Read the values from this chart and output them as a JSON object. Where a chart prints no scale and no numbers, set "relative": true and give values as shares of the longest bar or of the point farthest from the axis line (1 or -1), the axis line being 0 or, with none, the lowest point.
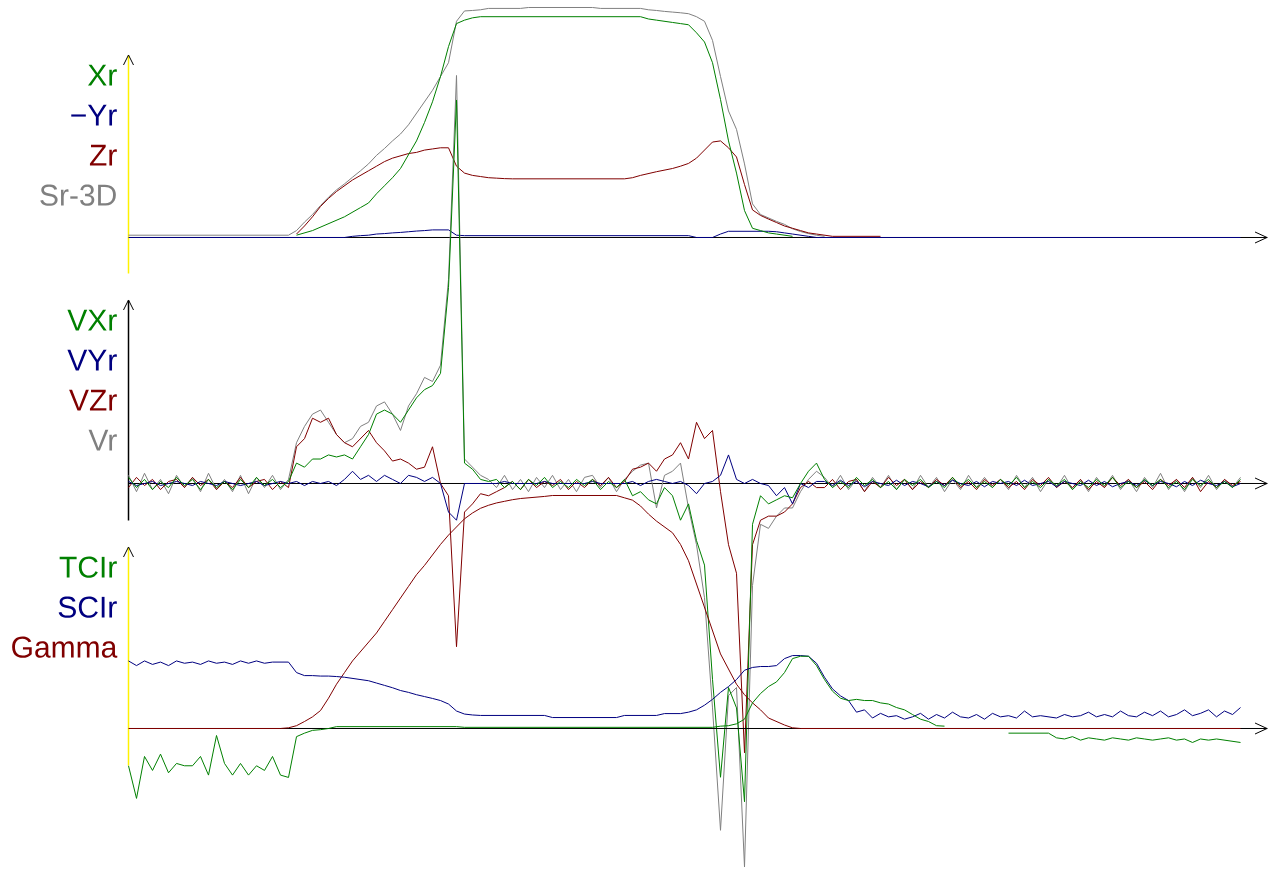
{
  "chart_data": [
    {
      "type": "line",
      "relative": true,
      "legend": "left",
      "categories": [
        null,
        null,
        null,
        null,
        null,
        null,
        null,
        null,
        null,
        null,
        null,
        null,
        null,
        null,
        null,
        null,
        null,
        null,
        null,
        null,
        null,
        null,
        null,
        null,
        null,
        null,
        null,
        null,
        null,
        null,
        null,
        null,
        null,
        null,
        null,
        null,
        null,
        null,
        null,
        null,
        null,
        null,
        null,
        null,
        null,
        null,
        null,
        null,
        null,
        null,
        null,
        null,
        null,
        null,
        null,
        null,
        null,
        null,
        null,
        null,
        null,
        null,
        null,
        null,
        null,
        null,
        null,
        null,
        null,
        null,
        null,
        null,
        null,
        null,
        null,
        null,
        null,
        null,
        null,
        null,
        null,
        null,
        null,
        null,
        null,
        null,
        null,
        null,
        null,
        null,
        null,
        null,
        null,
        null,
        null,
        null,
        null,
        null,
        null,
        null,
        null,
        null,
        null,
        null,
        null,
        null,
        null,
        null,
        null,
        null,
        null,
        null,
        null,
        null,
        null,
        null,
        null,
        null,
        null,
        null,
        null,
        null,
        null,
        null,
        null,
        null,
        null,
        null,
        null,
        null,
        null,
        null,
        null,
        null,
        null,
        null,
        null,
        null,
        null,
        null
      ],
      "series": [
        {
          "name": "Xr",
          "color": "#008000",
          "values": [
            null,
            null,
            null,
            null,
            null,
            null,
            null,
            null,
            null,
            null,
            null,
            null,
            null,
            null,
            null,
            null,
            null,
            null,
            null,
            null,
            null,
            0.01,
            0.02,
            0.03,
            0.045,
            0.06,
            0.075,
            0.09,
            0.11,
            0.13,
            0.15,
            0.19,
            0.225,
            0.26,
            0.3,
            0.36,
            0.42,
            0.5,
            0.59,
            0.7,
            0.83,
            0.93,
            0.945,
            0.955,
            0.96,
            0.96,
            0.96,
            0.96,
            0.96,
            0.96,
            0.96,
            0.96,
            0.96,
            0.96,
            0.96,
            0.96,
            0.96,
            0.96,
            0.96,
            0.96,
            0.96,
            0.96,
            0.96,
            0.96,
            0.96,
            0.95,
            0.945,
            0.94,
            0.935,
            0.93,
            0.925,
            0.89,
            0.85,
            0.76,
            0.6,
            0.42,
            0.28,
            0.117,
            0.04,
            0.03,
            0.02,
            0.015,
            0.01,
            0.005,
            null,
            null,
            null,
            null,
            null,
            null,
            null,
            null,
            null,
            null,
            null,
            null,
            null,
            null,
            null,
            null,
            null,
            null,
            null,
            null,
            null,
            null,
            null,
            null,
            null,
            null,
            null,
            null,
            null,
            null,
            null,
            null,
            null,
            null,
            null,
            null,
            null,
            null,
            null,
            null,
            null,
            null,
            null,
            null,
            null,
            null,
            null,
            null,
            null,
            null,
            null,
            null,
            null,
            null,
            null,
            null
          ]
        },
        {
          "name": "−Yr",
          "color": "#000080",
          "values": [
            0,
            0,
            0,
            0,
            0,
            0,
            0,
            0,
            0,
            0,
            0,
            0,
            0,
            0,
            0,
            0,
            0,
            0,
            0,
            0,
            0,
            0,
            0,
            0,
            0,
            0,
            0,
            0,
            0.005,
            0.008,
            0.01,
            0.015,
            0.017,
            0.02,
            0.022,
            0.025,
            0.028,
            0.03,
            0.033,
            0.033,
            0.033,
            0.01,
            0.008,
            0.008,
            0.008,
            0.008,
            0.008,
            0.008,
            0.008,
            0.008,
            0.008,
            0.008,
            0.008,
            0.008,
            0.008,
            0.008,
            0.008,
            0.008,
            0.008,
            0.008,
            0.008,
            0.008,
            0.008,
            0.008,
            0.008,
            0.008,
            0.008,
            0.008,
            0.008,
            0.008,
            0.008,
            0,
            0,
            0,
            0.015,
            0.027,
            0.027,
            0.027,
            0.027,
            0.027,
            0.027,
            0.025,
            0.02,
            0.015,
            0.01,
            0.005,
            0,
            0,
            0,
            0,
            0,
            0,
            0,
            0,
            0,
            0,
            0,
            0,
            0,
            0,
            0,
            0,
            0,
            0,
            0,
            0,
            0,
            0,
            0,
            0,
            0,
            0,
            0,
            0,
            0,
            0,
            0,
            0,
            0,
            0,
            0,
            0,
            0,
            0,
            0,
            0,
            0,
            0,
            0,
            0,
            0,
            0,
            0,
            0,
            0,
            0,
            0,
            0,
            0,
            0
          ]
        },
        {
          "name": "Zr",
          "color": "#800000",
          "values": [
            null,
            null,
            null,
            null,
            null,
            null,
            null,
            null,
            null,
            null,
            null,
            null,
            null,
            null,
            null,
            null,
            null,
            null,
            null,
            null,
            null,
            0.015,
            0.05,
            0.09,
            0.135,
            0.17,
            0.2,
            0.225,
            0.25,
            0.27,
            0.29,
            0.31,
            0.33,
            0.345,
            0.355,
            0.365,
            0.37,
            0.38,
            0.385,
            0.39,
            0.39,
            0.31,
            0.28,
            0.27,
            0.265,
            0.26,
            0.258,
            0.256,
            0.255,
            0.255,
            0.255,
            0.255,
            0.255,
            0.255,
            0.255,
            0.255,
            0.255,
            0.255,
            0.255,
            0.255,
            0.255,
            0.255,
            0.255,
            0.26,
            0.27,
            0.278,
            0.286,
            0.293,
            0.3,
            0.31,
            0.322,
            0.345,
            0.38,
            0.415,
            0.42,
            0.39,
            0.35,
            0.23,
            0.12,
            0.096,
            0.08,
            0.065,
            0.05,
            0.04,
            0.03,
            0.02,
            0.015,
            0.01,
            0.005,
            0.005,
            0.005,
            0.005,
            0.005,
            0.005,
            0.005,
            null,
            null,
            null,
            null,
            null,
            null,
            null,
            null,
            null,
            null,
            null,
            null,
            null,
            null,
            null,
            null,
            null,
            null,
            null,
            null,
            null,
            null,
            null,
            null,
            null,
            null,
            null,
            null,
            null,
            null,
            null,
            null,
            null,
            null,
            null,
            null,
            null,
            null,
            null,
            null,
            null,
            null,
            null,
            null,
            null
          ]
        },
        {
          "name": "Sr-3D",
          "color": "#808080",
          "values": [
            0.01,
            0.01,
            0.01,
            0.01,
            0.01,
            0.01,
            0.01,
            0.01,
            0.01,
            0.01,
            0.01,
            0.01,
            0.01,
            0.01,
            0.01,
            0.01,
            0.01,
            0.01,
            0.01,
            0.01,
            0.01,
            0.03,
            0.067,
            0.1,
            0.139,
            0.175,
            0.207,
            0.233,
            0.262,
            0.29,
            0.32,
            0.357,
            0.387,
            0.42,
            0.45,
            0.49,
            0.54,
            0.59,
            0.64,
            0.7,
            0.76,
            0.94,
            0.985,
            0.987,
            0.99,
            0.996,
            0.996,
            0.996,
            0.996,
            0.996,
            1,
            1,
            1,
            1,
            1,
            1,
            1,
            1,
            1,
            0.996,
            0.996,
            0.996,
            0.996,
            0.996,
            0.996,
            0.99,
            0.987,
            0.983,
            0.98,
            0.977,
            0.973,
            0.96,
            0.94,
            0.857,
            0.7,
            0.55,
            0.47,
            0.32,
            0.146,
            0.1,
            0.085,
            0.07,
            0.057,
            0.038,
            0.026,
            0.017,
            0.01,
            0.005,
            null,
            null,
            null,
            null,
            null,
            null,
            null,
            null,
            null,
            null,
            null,
            null,
            null,
            null,
            null,
            null,
            null,
            null,
            null,
            null,
            null,
            null,
            null,
            null,
            null,
            null,
            null,
            null,
            null,
            null,
            null,
            null,
            null,
            null,
            null,
            null,
            null,
            null,
            null,
            null,
            null,
            null,
            null,
            null,
            null,
            null,
            null,
            null,
            null,
            null,
            null,
            null
          ]
        }
      ]
    },
    {
      "type": "line",
      "relative": true,
      "legend": "left",
      "categories": [
        null,
        null,
        null,
        null,
        null,
        null,
        null,
        null,
        null,
        null,
        null,
        null,
        null,
        null,
        null,
        null,
        null,
        null,
        null,
        null,
        null,
        null,
        null,
        null,
        null,
        null,
        null,
        null,
        null,
        null,
        null,
        null,
        null,
        null,
        null,
        null,
        null,
        null,
        null,
        null,
        null,
        null,
        null,
        null,
        null,
        null,
        null,
        null,
        null,
        null,
        null,
        null,
        null,
        null,
        null,
        null,
        null,
        null,
        null,
        null,
        null,
        null,
        null,
        null,
        null,
        null,
        null,
        null,
        null,
        null,
        null,
        null,
        null,
        null,
        null,
        null,
        null,
        null,
        null,
        null,
        null,
        null,
        null,
        null,
        null,
        null,
        null,
        null,
        null,
        null,
        null,
        null,
        null,
        null,
        null,
        null,
        null,
        null,
        null,
        null,
        null,
        null,
        null,
        null,
        null,
        null,
        null,
        null,
        null,
        null,
        null,
        null,
        null,
        null,
        null,
        null,
        null,
        null,
        null,
        null,
        null,
        null,
        null,
        null,
        null,
        null,
        null,
        null,
        null,
        null,
        null,
        null,
        null,
        null,
        null,
        null,
        null,
        null,
        null,
        null
      ],
      "series": [
        {
          "name": "VXr",
          "color": "#008000",
          "values": [
            0.015,
            -0.01,
            0.01,
            -0.015,
            0.005,
            -0.01,
            0.015,
            -0.005,
            0.01,
            -0.015,
            0.01,
            -0.01,
            0.005,
            -0.015,
            0.01,
            -0.01,
            0.015,
            -0.005,
            0.01,
            -0.01,
            0.005,
            0.05,
            0.04,
            0.06,
            0.06,
            0.07,
            0.065,
            0.07,
            0.06,
            0.09,
            0.12,
            0.17,
            0.18,
            0.17,
            0.15,
            0.18,
            0.21,
            0.23,
            0.24,
            0.27,
            0.48,
            0.94,
            0.05,
            0.035,
            0.01,
            0.005,
            0.01,
            -0.01,
            0.005,
            -0.015,
            0.01,
            -0.005,
            0.015,
            -0.01,
            0.005,
            -0.01,
            0.01,
            -0.005,
            0.01,
            -0.015,
            0.005,
            -0.01,
            0.01,
            -0.03,
            -0.02,
            -0.04,
            -0.05,
            -0.01,
            -0.03,
            -0.09,
            -0.05,
            -0.14,
            -0.2,
            -0.48,
            -0.72,
            -0.5,
            -0.55,
            -0.78,
            -0.1,
            -0.03,
            -0.05,
            -0.04,
            -0.03,
            -0.035,
            0,
            0.03,
            0.05,
            0.01,
            -0.01,
            0.005,
            -0.01,
            0.015,
            -0.005,
            0.01,
            -0.01,
            0.005,
            -0.015,
            0.01,
            -0.005,
            0.01,
            -0.01,
            0.005,
            -0.01,
            0.015,
            -0.005,
            0.01,
            -0.01,
            0.005,
            -0.01,
            0.01,
            -0.005,
            0.015,
            -0.01,
            0.005,
            -0.01,
            0.01,
            -0.005,
            0.01,
            -0.015,
            0.005,
            -0.01,
            0.01,
            -0.005,
            0.015,
            -0.01,
            0.005,
            -0.01,
            0.01,
            -0.005,
            0.01,
            -0.01,
            0.005,
            -0.015,
            0.01,
            -0.005,
            0.01,
            -0.01,
            0.005,
            -0.01,
            0.01
          ]
        },
        {
          "name": "VYr",
          "color": "#000080",
          "values": [
            0.005,
            -0.005,
            0,
            0.005,
            -0.005,
            0,
            0.005,
            0,
            -0.005,
            0.005,
            0,
            -0.005,
            0.005,
            0,
            -0.005,
            0,
            0.005,
            -0.005,
            0,
            0.005,
            0,
            0.005,
            -0.005,
            0.005,
            0,
            0.005,
            -0.005,
            0.01,
            0.03,
            0.01,
            0.02,
            0.005,
            0.02,
            0.01,
            0,
            0.02,
            0.015,
            0.005,
            0.015,
            0,
            -0.07,
            -0.09,
            0,
            0,
            0,
            0,
            0,
            0.005,
            0,
            0,
            0,
            0,
            0.005,
            0,
            0,
            0,
            0,
            0,
            0.005,
            0,
            0,
            0,
            0,
            0.005,
            -0.005,
            0.005,
            0.01,
            0.005,
            0,
            0.005,
            -0.005,
            -0.025,
            0,
            0.005,
            0.02,
            0.07,
            0.01,
            0,
            0.01,
            0,
            -0.005,
            -0.03,
            -0.01,
            -0.05,
            0,
            -0.01,
            0.005,
            0.005,
            -0.005,
            0.008,
            -0.005,
            0.005,
            -0.008,
            0.005,
            0,
            -0.005,
            0.008,
            -0.005,
            0.005,
            0,
            -0.008,
            0.005,
            -0.005,
            0.008,
            0,
            -0.005,
            0.005,
            -0.008,
            0.005,
            0,
            0.005,
            -0.005,
            0.008,
            -0.005,
            0,
            0.005,
            -0.008,
            0.005,
            0,
            -0.005,
            0.008,
            -0.005,
            0.005,
            -0.008,
            0,
            0.005,
            -0.005,
            0.008,
            -0.005,
            0.005,
            0,
            -0.008,
            0.005,
            -0.005,
            0.008,
            0,
            -0.005,
            0.005,
            -0.008,
            0
          ]
        },
        {
          "name": "VZr",
          "color": "#800000",
          "values": [
            -0.01,
            0.015,
            -0.005,
            0.01,
            -0.015,
            0.005,
            0.01,
            -0.01,
            0.015,
            -0.005,
            0.01,
            -0.015,
            0.005,
            -0.01,
            0.015,
            -0.01,
            0.005,
            0.01,
            -0.015,
            0.005,
            -0.01,
            0.09,
            0.11,
            0.16,
            0.15,
            0.16,
            0.12,
            0.1,
            0.09,
            0.11,
            0.13,
            0.1,
            0.08,
            0.055,
            0.06,
            0.05,
            0.035,
            0.04,
            0.09,
            0,
            -0.03,
            -0.4,
            -0.07,
            -0.05,
            -0.025,
            -0.03,
            -0.02,
            -0.01,
            0.005,
            -0.015,
            0.01,
            -0.01,
            0.005,
            -0.005,
            0.01,
            -0.015,
            0.005,
            -0.01,
            0.01,
            -0.005,
            0.015,
            -0.01,
            0.005,
            0.035,
            0.04,
            0.05,
            0.03,
            0.06,
            0.07,
            0.1,
            0.06,
            0.15,
            0.11,
            0.13,
            -0.02,
            -0.15,
            -0.22,
            -0.66,
            -0.15,
            -0.09,
            -0.08,
            -0.08,
            -0.07,
            -0.05,
            -0.01,
            0.005,
            -0.01,
            -0.01,
            0.01,
            -0.015,
            0.005,
            0.01,
            -0.02,
            0.005,
            -0.01,
            0.015,
            -0.005,
            0.01,
            -0.015,
            0.005,
            -0.01,
            0.01,
            -0.005,
            0.015,
            -0.01,
            0.005,
            -0.015,
            0.01,
            -0.005,
            0.01,
            -0.01,
            0.005,
            -0.015,
            0.01,
            -0.005,
            0.015,
            -0.01,
            0.005,
            -0.01,
            0.01,
            -0.015,
            0.005,
            -0.01,
            0.015,
            -0.005,
            0.01,
            -0.01,
            0.005,
            -0.015,
            0.01,
            -0.005,
            0.01,
            -0.01,
            0.015,
            -0.02,
            0.005,
            -0.01,
            0.01,
            -0.005,
            0.005
          ]
        },
        {
          "name": "Vr",
          "color": "#808080",
          "values": [
            0.02,
            -0.02,
            0.025,
            -0.015,
            0.01,
            -0.025,
            0.02,
            -0.01,
            0.015,
            -0.02,
            0.025,
            -0.015,
            0.01,
            -0.02,
            0.02,
            -0.025,
            0.015,
            -0.01,
            0.02,
            -0.015,
            0.01,
            0.1,
            0.14,
            0.17,
            0.18,
            0.15,
            0.12,
            0.1,
            0.11,
            0.14,
            0.15,
            0.19,
            0.2,
            0.17,
            0.13,
            0.19,
            0.22,
            0.26,
            0.25,
            0.29,
            0.5,
            1,
            0.06,
            0.04,
            0.02,
            0.01,
            -0.01,
            0.02,
            -0.015,
            0.01,
            -0.02,
            0.015,
            -0.01,
            0.02,
            -0.015,
            0.01,
            -0.02,
            0.015,
            0.02,
            -0.01,
            0.015,
            -0.02,
            0.01,
            0.03,
            0.045,
            0.05,
            -0.06,
            0.02,
            0.03,
            0.05,
            -0.06,
            -0.15,
            -0.28,
            -0.55,
            -0.85,
            -0.52,
            -0.5,
            -0.94,
            -0.25,
            -0.1,
            -0.11,
            -0.08,
            -0.06,
            -0.06,
            -0.02,
            0.01,
            0.03,
            0.015,
            -0.01,
            0.02,
            -0.015,
            0.01,
            -0.02,
            0.015,
            -0.01,
            0.02,
            -0.015,
            0.01,
            -0.015,
            0.02,
            -0.01,
            0.015,
            -0.02,
            0.01,
            -0.015,
            0.02,
            -0.01,
            0.015,
            -0.01,
            0.01,
            -0.015,
            0.02,
            -0.01,
            0.015,
            -0.02,
            0.01,
            -0.01,
            0.02,
            -0.015,
            0.01,
            -0.02,
            0.015,
            -0.01,
            0.02,
            -0.015,
            0.01,
            -0.02,
            0.015,
            -0.01,
            0.025,
            -0.015,
            0.01,
            -0.02,
            0.015,
            -0.01,
            0.02,
            -0.015,
            0.01,
            -0.01,
            0.015
          ]
        }
      ]
    },
    {
      "type": "line",
      "relative": true,
      "legend": "left",
      "categories": [
        null,
        null,
        null,
        null,
        null,
        null,
        null,
        null,
        null,
        null,
        null,
        null,
        null,
        null,
        null,
        null,
        null,
        null,
        null,
        null,
        null,
        null,
        null,
        null,
        null,
        null,
        null,
        null,
        null,
        null,
        null,
        null,
        null,
        null,
        null,
        null,
        null,
        null,
        null,
        null,
        null,
        null,
        null,
        null,
        null,
        null,
        null,
        null,
        null,
        null,
        null,
        null,
        null,
        null,
        null,
        null,
        null,
        null,
        null,
        null,
        null,
        null,
        null,
        null,
        null,
        null,
        null,
        null,
        null,
        null,
        null,
        null,
        null,
        null,
        null,
        null,
        null,
        null,
        null,
        null,
        null,
        null,
        null,
        null,
        null,
        null,
        null,
        null,
        null,
        null,
        null,
        null,
        null,
        null,
        null,
        null,
        null,
        null,
        null,
        null,
        null,
        null,
        null,
        null,
        null,
        null,
        null,
        null,
        null,
        null,
        null,
        null,
        null,
        null,
        null,
        null,
        null,
        null,
        null,
        null,
        null,
        null,
        null,
        null,
        null,
        null,
        null,
        null,
        null,
        null,
        null,
        null,
        null,
        null,
        null,
        null,
        null,
        null,
        null,
        null
      ],
      "series": [
        {
          "name": "TCIr",
          "color": "#008000",
          "values": [
            -0.16,
            -0.3,
            -0.12,
            -0.18,
            -0.11,
            -0.19,
            -0.15,
            -0.16,
            -0.16,
            -0.12,
            -0.2,
            -0.03,
            -0.15,
            -0.2,
            -0.15,
            -0.2,
            -0.16,
            -0.18,
            -0.12,
            -0.2,
            -0.21,
            -0.035,
            -0.02,
            -0.008,
            -0.005,
            0,
            0.008,
            0.008,
            0.008,
            0.008,
            0.008,
            0.008,
            0.008,
            0.008,
            0.008,
            0.008,
            0.008,
            0.008,
            0.008,
            0.008,
            0.008,
            0.008,
            0.005,
            0.005,
            0.005,
            0.005,
            0.005,
            0.005,
            0.005,
            0.005,
            0.005,
            0.005,
            0.005,
            0.005,
            0.005,
            0.005,
            0.005,
            0.005,
            0.005,
            0.005,
            0.005,
            0.005,
            0.005,
            0.005,
            0.005,
            0.005,
            0.005,
            0.005,
            0.005,
            0.005,
            0.005,
            0.005,
            0.005,
            0.005,
            0.01,
            0.012,
            0.02,
            0.04,
            0.11,
            0.15,
            0.18,
            0.2,
            0.24,
            0.3,
            0.31,
            0.31,
            0.27,
            0.21,
            0.16,
            0.13,
            0.12,
            0.125,
            0.12,
            0.12,
            0.11,
            0.105,
            0.09,
            0.08,
            0.06,
            0.04,
            0.03,
            0.012,
            0.01,
            null,
            null,
            null,
            null,
            null,
            null,
            null,
            -0.02,
            -0.02,
            -0.02,
            -0.02,
            -0.02,
            -0.02,
            -0.04,
            -0.045,
            -0.035,
            -0.05,
            -0.04,
            -0.045,
            -0.05,
            -0.04,
            -0.045,
            -0.05,
            -0.04,
            -0.045,
            -0.05,
            -0.045,
            -0.04,
            -0.05,
            -0.045,
            -0.06,
            -0.045,
            -0.05,
            -0.045,
            -0.05,
            -0.055,
            -0.06
          ]
        },
        {
          "name": "SCIr",
          "color": "#000080",
          "values": [
            0.29,
            0.27,
            0.29,
            0.275,
            0.285,
            0.27,
            0.29,
            0.28,
            0.285,
            0.275,
            0.29,
            0.28,
            0.285,
            0.275,
            0.29,
            0.28,
            0.29,
            0.28,
            0.285,
            0.285,
            0.285,
            0.24,
            0.227,
            0.227,
            0.225,
            0.225,
            0.223,
            0.22,
            0.215,
            0.21,
            0.205,
            0.195,
            0.185,
            0.175,
            0.163,
            0.155,
            0.145,
            0.137,
            0.129,
            0.12,
            0.105,
            0.075,
            0.062,
            0.058,
            0.056,
            0.056,
            0.056,
            0.056,
            0.056,
            0.056,
            0.056,
            0.056,
            0.056,
            0.047,
            0.047,
            0.047,
            0.047,
            0.047,
            0.047,
            0.047,
            0.047,
            0.047,
            0.056,
            0.056,
            0.056,
            0.056,
            0.056,
            0.064,
            0.064,
            0.064,
            0.07,
            0.08,
            0.1,
            0.125,
            0.155,
            0.18,
            0.21,
            0.25,
            0.262,
            0.266,
            0.266,
            0.27,
            0.3,
            0.313,
            0.313,
            0.31,
            0.28,
            0.22,
            0.17,
            0.14,
            0.12,
            0.07,
            0.08,
            0.045,
            0.065,
            0.05,
            0.055,
            0.04,
            0.05,
            0.065,
            0.04,
            0.06,
            0.045,
            0.07,
            0.05,
            0.045,
            0.06,
            0.04,
            0.065,
            0.05,
            0.055,
            0.045,
            0.075,
            0.05,
            0.055,
            0.05,
            0.045,
            0.06,
            0.05,
            0.055,
            0.07,
            0.05,
            0.06,
            0.05,
            0.075,
            0.055,
            0.05,
            0.07,
            0.055,
            0.075,
            0.05,
            0.06,
            0.08,
            0.055,
            0.065,
            0.08,
            0.05,
            0.075,
            0.06,
            0.09
          ]
        },
        {
          "name": "Gamma",
          "color": "#800000",
          "values": [
            0,
            0,
            0,
            0,
            0,
            0,
            0,
            0,
            0,
            0,
            0,
            0,
            0,
            0,
            0,
            0,
            0,
            0,
            0,
            0,
            0.003,
            0.012,
            0.03,
            0.05,
            0.077,
            0.13,
            0.19,
            0.24,
            0.29,
            0.33,
            0.37,
            0.41,
            0.46,
            0.51,
            0.56,
            0.61,
            0.66,
            0.7,
            0.745,
            0.79,
            0.83,
            0.865,
            0.9,
            0.925,
            0.945,
            0.958,
            0.968,
            0.975,
            0.982,
            0.987,
            0.99,
            0.993,
            0.996,
            1,
            1,
            1,
            1,
            1,
            1,
            1,
            1,
            1,
            0.99,
            0.98,
            0.955,
            0.92,
            0.89,
            0.865,
            0.84,
            0.79,
            0.72,
            0.62,
            0.52,
            0.42,
            0.32,
            0.255,
            0.19,
            0.145,
            0.11,
            0.08,
            0.045,
            0.03,
            0.015,
            0.003,
            0,
            0,
            0,
            0,
            0,
            0,
            0,
            0,
            0,
            0,
            0,
            0,
            0,
            0,
            0,
            0,
            0,
            0,
            0,
            0,
            0,
            0,
            0,
            0,
            0,
            0,
            0,
            0,
            0,
            0,
            0,
            0,
            0,
            0,
            0,
            0,
            0,
            0,
            0,
            0,
            0,
            0,
            0,
            0,
            0,
            0,
            0,
            0,
            0,
            0,
            0,
            0,
            0,
            0,
            0,
            0
          ]
        }
      ]
    }
  ]
}
